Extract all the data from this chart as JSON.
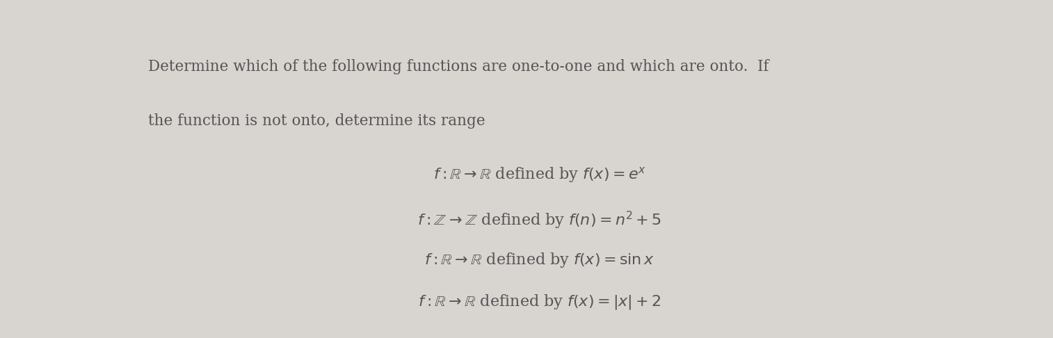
{
  "background_color": "#d8d4d0",
  "text_color": "#555555",
  "title_line1": "Determine which of the following functions are one-to-one and which are onto.  If",
  "title_line2": "the function is not onto, determine its range",
  "figsize": [
    15.14,
    4.86
  ],
  "dpi": 100,
  "header_fontsize": 15.5,
  "math_fontsize": 16
}
